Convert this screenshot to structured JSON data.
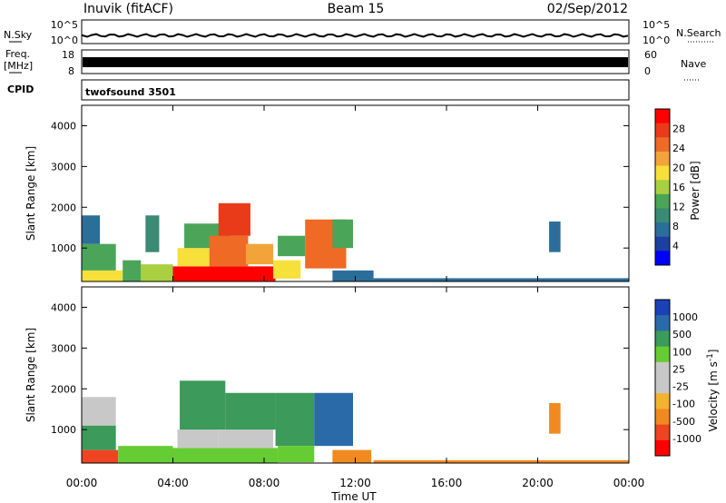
{
  "header": {
    "station": "Inuvik (fitACF)",
    "beam": "Beam 15",
    "date": "02/Sep/2012"
  },
  "summary_panels": {
    "nsky_label": "N.Sky",
    "nsky_ticks": [
      "10^5",
      "10^0"
    ],
    "nsearch_label": "N.Search",
    "nsearch_ticks": [
      "10^5",
      "10^0"
    ],
    "freq_label": "Freq.",
    "freq_unit": "[MHz]",
    "freq_ticks": [
      "18",
      "8"
    ],
    "nave_label": "Nave",
    "nave_ticks": [
      "60",
      "0"
    ],
    "cpid_label": "CPID",
    "cpid_value": "twofsound 3501"
  },
  "chart_data": [
    {
      "type": "heatmap",
      "title": "",
      "xlabel": "",
      "ylabel": "Slant Range [km]",
      "x_ticks": [
        "00:00",
        "04:00",
        "08:00",
        "12:00",
        "16:00",
        "20:00",
        "00:00"
      ],
      "y_ticks": [
        1000,
        2000,
        3000,
        4000
      ],
      "xlim_hours": [
        0,
        24
      ],
      "ylim_km": [
        180,
        4500
      ],
      "colorbar": {
        "label": "Power [dB]",
        "ticks": [
          "28",
          "24",
          "20",
          "16",
          "12",
          "8",
          "4"
        ],
        "min": 0,
        "max": 32,
        "colors": [
          "#0000ff",
          "#1c3fa0",
          "#2c6e9a",
          "#3a8a74",
          "#4aa558",
          "#a8d040",
          "#f7e03a",
          "#f2a43a",
          "#ee6a25",
          "#e93a1a",
          "#ff0000"
        ]
      },
      "regions": [
        {
          "t0": 0.0,
          "t1": 1.8,
          "r0": 180,
          "r1": 450,
          "value": 20
        },
        {
          "t0": 0.0,
          "t1": 1.5,
          "r0": 450,
          "r1": 1100,
          "value": 14
        },
        {
          "t0": 0.0,
          "t1": 0.8,
          "r0": 1100,
          "r1": 1800,
          "value": 8
        },
        {
          "t0": 1.8,
          "t1": 2.6,
          "r0": 180,
          "r1": 700,
          "value": 12
        },
        {
          "t0": 2.6,
          "t1": 4.0,
          "r0": 180,
          "r1": 600,
          "value": 16
        },
        {
          "t0": 2.8,
          "t1": 3.4,
          "r0": 900,
          "r1": 1800,
          "value": 10
        },
        {
          "t0": 4.0,
          "t1": 8.5,
          "r0": 180,
          "r1": 550,
          "value": 30
        },
        {
          "t0": 4.2,
          "t1": 5.6,
          "r0": 550,
          "r1": 1000,
          "value": 18
        },
        {
          "t0": 4.5,
          "t1": 6.5,
          "r0": 1000,
          "r1": 1600,
          "value": 12
        },
        {
          "t0": 5.6,
          "t1": 7.3,
          "r0": 550,
          "r1": 1300,
          "value": 24
        },
        {
          "t0": 6.0,
          "t1": 7.4,
          "r0": 1300,
          "r1": 2100,
          "value": 28
        },
        {
          "t0": 7.2,
          "t1": 8.4,
          "r0": 600,
          "r1": 1100,
          "value": 22
        },
        {
          "t0": 8.4,
          "t1": 9.6,
          "r0": 250,
          "r1": 700,
          "value": 20
        },
        {
          "t0": 8.6,
          "t1": 9.8,
          "r0": 800,
          "r1": 1300,
          "value": 12
        },
        {
          "t0": 9.8,
          "t1": 11.6,
          "r0": 500,
          "r1": 1700,
          "value": 26
        },
        {
          "t0": 11.0,
          "t1": 11.9,
          "r0": 1000,
          "r1": 1700,
          "value": 14
        },
        {
          "t0": 11.0,
          "t1": 12.8,
          "r0": 180,
          "r1": 450,
          "value": 8
        },
        {
          "t0": 12.8,
          "t1": 24.0,
          "r0": 180,
          "r1": 260,
          "value": 6
        },
        {
          "t0": 20.5,
          "t1": 21.0,
          "r0": 900,
          "r1": 1650,
          "value": 8
        }
      ]
    },
    {
      "type": "heatmap",
      "title": "",
      "xlabel": "Time UT",
      "ylabel": "Slant Range [km]",
      "x_ticks": [
        "00:00",
        "04:00",
        "08:00",
        "12:00",
        "16:00",
        "20:00",
        "00:00"
      ],
      "y_ticks": [
        1000,
        2000,
        3000,
        4000
      ],
      "xlim_hours": [
        0,
        24
      ],
      "ylim_km": [
        180,
        4500
      ],
      "colorbar": {
        "label": "Velocity [m s^-1]",
        "ticks": [
          "1000",
          "500",
          "100",
          "25",
          "-25",
          "-100",
          "-500",
          "-1000"
        ],
        "colors": [
          "#ff0000",
          "#ee4422",
          "#f08a20",
          "#f2b430",
          "#c8c8c8",
          "#c8c8c8",
          "#66cc33",
          "#3c9a5a",
          "#2a6aa8",
          "#1c40b8"
        ]
      },
      "regions": [
        {
          "t0": 0.0,
          "t1": 1.6,
          "r0": 180,
          "r1": 500,
          "value": -800
        },
        {
          "t0": 0.0,
          "t1": 1.5,
          "r0": 500,
          "r1": 1100,
          "value": 200
        },
        {
          "t0": 0.0,
          "t1": 1.5,
          "r0": 1100,
          "r1": 1800,
          "value": 0
        },
        {
          "t0": 1.6,
          "t1": 4.0,
          "r0": 180,
          "r1": 600,
          "value": 80
        },
        {
          "t0": 4.0,
          "t1": 8.6,
          "r0": 180,
          "r1": 550,
          "value": 60
        },
        {
          "t0": 4.2,
          "t1": 6.0,
          "r0": 550,
          "r1": 1000,
          "value": 0
        },
        {
          "t0": 4.3,
          "t1": 6.3,
          "r0": 1000,
          "r1": 2200,
          "value": 300
        },
        {
          "t0": 6.0,
          "t1": 8.4,
          "r0": 550,
          "r1": 1000,
          "value": 0
        },
        {
          "t0": 6.3,
          "t1": 8.5,
          "r0": 1000,
          "r1": 1900,
          "value": 200
        },
        {
          "t0": 8.5,
          "t1": 10.2,
          "r0": 600,
          "r1": 1900,
          "value": 300
        },
        {
          "t0": 8.6,
          "t1": 10.2,
          "r0": 200,
          "r1": 600,
          "value": 30
        },
        {
          "t0": 10.2,
          "t1": 11.9,
          "r0": 600,
          "r1": 1900,
          "value": 900
        },
        {
          "t0": 11.0,
          "t1": 12.7,
          "r0": 180,
          "r1": 500,
          "value": -150
        },
        {
          "t0": 12.8,
          "t1": 24.0,
          "r0": 180,
          "r1": 250,
          "value": -150
        },
        {
          "t0": 20.5,
          "t1": 21.0,
          "r0": 900,
          "r1": 1650,
          "value": -300
        }
      ]
    }
  ]
}
